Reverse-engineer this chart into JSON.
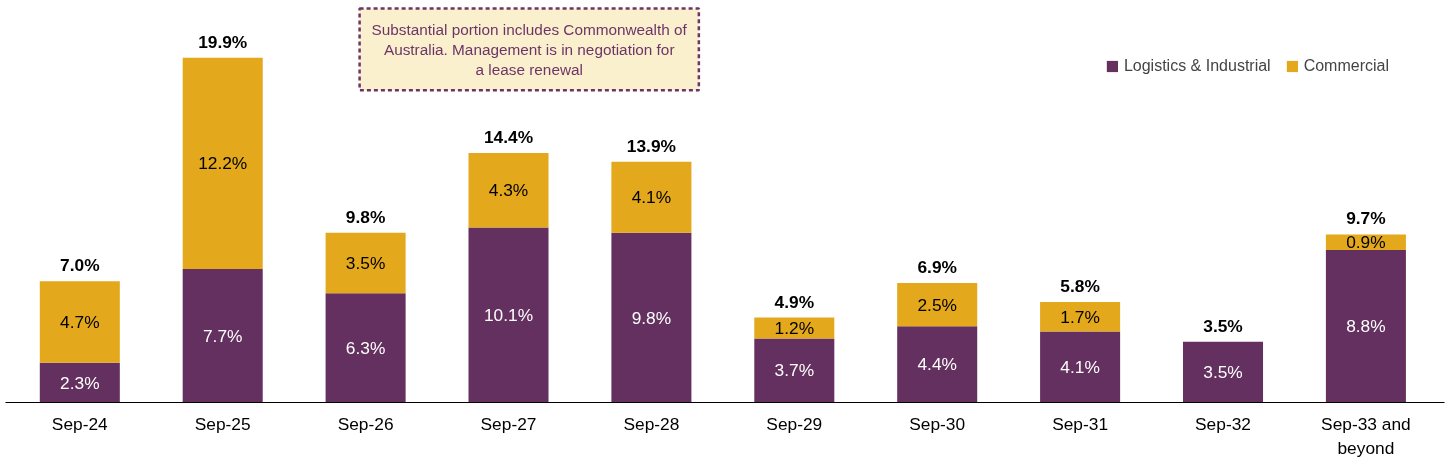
{
  "chart_data": {
    "type": "bar",
    "stacked": true,
    "categories": [
      "Sep-24",
      "Sep-25",
      "Sep-26",
      "Sep-27",
      "Sep-28",
      "Sep-29",
      "Sep-30",
      "Sep-31",
      "Sep-32",
      "Sep-33 and beyond"
    ],
    "series": [
      {
        "name": "Logistics & Industrial",
        "color": "#63305f",
        "values": [
          2.3,
          7.7,
          6.3,
          10.1,
          9.8,
          3.7,
          4.4,
          4.1,
          3.5,
          8.8
        ],
        "value_labels": [
          "2.3%",
          "7.7%",
          "6.3%",
          "10.1%",
          "9.8%",
          "3.7%",
          "4.4%",
          "4.1%",
          "3.5%",
          "8.8%"
        ]
      },
      {
        "name": "Commercial",
        "color": "#e3a81c",
        "values": [
          4.7,
          12.2,
          3.5,
          4.3,
          4.1,
          1.2,
          2.5,
          1.7,
          0,
          0.9
        ],
        "value_labels": [
          "4.7%",
          "12.2%",
          "3.5%",
          "4.3%",
          "4.1%",
          "1.2%",
          "2.5%",
          "1.7%",
          null,
          "0.9%"
        ]
      }
    ],
    "totals": [
      "7.0%",
      "19.9%",
      "9.8%",
      "14.4%",
      "13.9%",
      "4.9%",
      "6.9%",
      "5.8%",
      "3.5%",
      "9.7%"
    ],
    "annotations": [
      "Substantial portion includes Commonwealth of Australia. Management is in negotiation for a lease renewal"
    ],
    "legend": "top right",
    "grid": false
  }
}
